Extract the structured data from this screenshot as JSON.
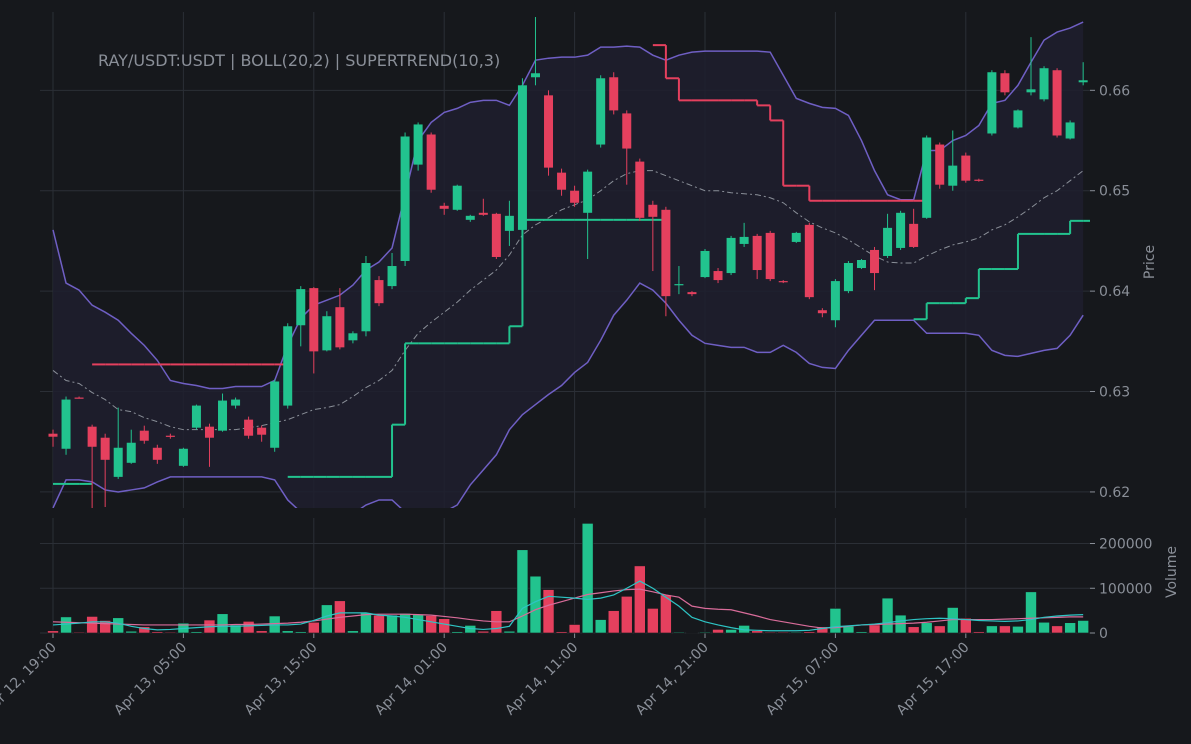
{
  "chart_data": [
    {
      "type": "candlestick",
      "title": "RAY/USDT:USDT | BOLL(20,2) | SUPERTREND(10,3)",
      "ylabel": "Price",
      "categories": [
        "Apr 12, 19:00",
        null,
        null,
        null,
        null,
        null,
        null,
        null,
        null,
        null,
        "Apr 13, 05:00",
        null,
        null,
        null,
        null,
        null,
        null,
        null,
        null,
        null,
        "Apr 13, 15:00",
        null,
        null,
        null,
        null,
        null,
        null,
        null,
        null,
        null,
        "Apr 14, 01:00",
        null,
        null,
        null,
        null,
        null,
        null,
        null,
        null,
        null,
        "Apr 14, 11:00",
        null,
        null,
        null,
        null,
        null,
        null,
        null,
        null,
        null,
        "Apr 14, 21:00",
        null,
        null,
        null,
        null,
        null,
        null,
        null,
        null,
        null,
        "Apr 15, 07:00",
        null,
        null,
        null,
        null,
        null,
        null,
        null,
        null,
        null,
        "Apr 15, 17:00",
        null,
        null,
        null,
        null,
        null,
        null,
        null,
        null,
        null
      ],
      "open": [
        0.6258,
        0.6243,
        0.6294,
        0.6265,
        0.6254,
        0.6215,
        0.6229,
        0.6261,
        0.6244,
        0.6256,
        0.6226,
        0.6264,
        0.6265,
        0.6261,
        0.6286,
        0.6272,
        0.6264,
        0.6244,
        0.6286,
        0.6366,
        0.6403,
        0.6341,
        0.6384,
        0.6351,
        0.636,
        0.6411,
        0.6405,
        0.643,
        0.6526,
        0.6556,
        0.6485,
        0.6481,
        0.6471,
        0.6478,
        0.6477,
        0.646,
        0.6461,
        0.6613,
        0.6595,
        0.6518,
        0.65,
        0.6478,
        0.6546,
        0.6613,
        0.6577,
        0.6529,
        0.6486,
        0.6481,
        0.6406,
        0.6399,
        0.6414,
        0.642,
        0.6418,
        0.6447,
        0.6455,
        0.6458,
        0.641,
        0.6449,
        0.6466,
        0.6381,
        0.6371,
        0.64,
        0.6423,
        0.6441,
        0.6435,
        0.6443,
        0.6467,
        0.6473,
        0.6546,
        0.6505,
        0.6535,
        0.6511,
        0.6557,
        0.6617,
        0.6563,
        0.6598,
        0.6591,
        0.662,
        0.6552,
        0.6608
      ],
      "high": [
        0.6262,
        0.6295,
        0.6295,
        0.6267,
        0.6258,
        0.6284,
        0.6262,
        0.6266,
        0.6247,
        0.6258,
        0.6244,
        0.6287,
        0.6268,
        0.6298,
        0.6294,
        0.6275,
        0.6266,
        0.6312,
        0.6368,
        0.6405,
        0.6404,
        0.638,
        0.6403,
        0.636,
        0.6435,
        0.6415,
        0.6438,
        0.6558,
        0.6568,
        0.6558,
        0.6488,
        0.6506,
        0.6476,
        0.6492,
        0.6478,
        0.649,
        0.6612,
        0.6673,
        0.66,
        0.6522,
        0.6505,
        0.6521,
        0.6615,
        0.6618,
        0.658,
        0.6532,
        0.649,
        0.6484,
        0.6425,
        0.64,
        0.6442,
        0.6423,
        0.6455,
        0.6468,
        0.6457,
        0.646,
        0.6411,
        0.6459,
        0.6468,
        0.6383,
        0.6412,
        0.643,
        0.6432,
        0.6444,
        0.6477,
        0.648,
        0.6482,
        0.6555,
        0.6548,
        0.656,
        0.6538,
        0.6512,
        0.662,
        0.662,
        0.6581,
        0.6653,
        0.6624,
        0.6622,
        0.657,
        0.6628
      ],
      "low": [
        0.6245,
        0.6237,
        0.6293,
        0.6182,
        0.6185,
        0.6213,
        0.6228,
        0.6248,
        0.6228,
        0.6253,
        0.6225,
        0.6262,
        0.6225,
        0.626,
        0.6283,
        0.6253,
        0.625,
        0.624,
        0.6283,
        0.6345,
        0.6318,
        0.634,
        0.6342,
        0.6348,
        0.6355,
        0.6385,
        0.6402,
        0.6425,
        0.652,
        0.6498,
        0.6476,
        0.648,
        0.6469,
        0.6475,
        0.6432,
        0.6445,
        0.646,
        0.6605,
        0.6515,
        0.6495,
        0.6484,
        0.6432,
        0.6543,
        0.6576,
        0.6506,
        0.647,
        0.642,
        0.6375,
        0.6397,
        0.6395,
        0.6413,
        0.6408,
        0.6416,
        0.6444,
        0.6412,
        0.641,
        0.6408,
        0.6448,
        0.6392,
        0.6374,
        0.6364,
        0.6398,
        0.6422,
        0.6401,
        0.6433,
        0.6441,
        0.6443,
        0.6472,
        0.6502,
        0.65,
        0.6508,
        0.6509,
        0.6555,
        0.6595,
        0.6562,
        0.6595,
        0.6589,
        0.6553,
        0.6551,
        0.6605
      ],
      "close": [
        0.6255,
        0.6292,
        0.6293,
        0.6245,
        0.6232,
        0.6244,
        0.6249,
        0.6251,
        0.6232,
        0.6255,
        0.6243,
        0.6286,
        0.6254,
        0.6291,
        0.6292,
        0.6256,
        0.6257,
        0.631,
        0.6365,
        0.6402,
        0.634,
        0.6375,
        0.6344,
        0.6358,
        0.6428,
        0.6388,
        0.6425,
        0.6554,
        0.6566,
        0.6501,
        0.6482,
        0.6505,
        0.6475,
        0.6476,
        0.6434,
        0.6475,
        0.6605,
        0.6617,
        0.6523,
        0.6501,
        0.6488,
        0.6519,
        0.6612,
        0.658,
        0.6542,
        0.6473,
        0.6474,
        0.6395,
        0.6407,
        0.6397,
        0.644,
        0.6411,
        0.6453,
        0.6454,
        0.6421,
        0.6412,
        0.6409,
        0.6458,
        0.6394,
        0.6378,
        0.641,
        0.6428,
        0.6431,
        0.6418,
        0.6463,
        0.6478,
        0.6444,
        0.6553,
        0.6506,
        0.6525,
        0.651,
        0.651,
        0.6618,
        0.6598,
        0.658,
        0.6601,
        0.6622,
        0.6555,
        0.6568,
        0.661
      ],
      "up_color": "#22c38e",
      "down_color": "#e5405e",
      "series": [
        {
          "kind": "line",
          "color": "#6f5fc4",
          "values": [
            0.6461,
            0.6408,
            0.6401,
            0.6386,
            0.6379,
            0.6371,
            0.6358,
            0.6346,
            0.6331,
            0.6311,
            0.6308,
            0.6306,
            0.6303,
            0.6303,
            0.6305,
            0.6305,
            0.6305,
            0.6311,
            0.6346,
            0.6373,
            0.6386,
            0.6391,
            0.6396,
            0.6406,
            0.6421,
            0.6429,
            0.6443,
            0.6496,
            0.655,
            0.6568,
            0.6578,
            0.6582,
            0.6588,
            0.659,
            0.659,
            0.6585,
            0.6605,
            0.663,
            0.6632,
            0.6633,
            0.6633,
            0.6635,
            0.6643,
            0.6643,
            0.6644,
            0.6643,
            0.6635,
            0.663,
            0.6635,
            0.6638,
            0.6639,
            0.6639,
            0.6639,
            0.6639,
            0.6639,
            0.6638,
            0.6615,
            0.6592,
            0.6587,
            0.6583,
            0.6582,
            0.6575,
            0.655,
            0.652,
            0.6496,
            0.6491,
            0.6491,
            0.654,
            0.654,
            0.655,
            0.6555,
            0.6565,
            0.6587,
            0.659,
            0.6605,
            0.6628,
            0.665,
            0.6658,
            0.6662,
            0.6668
          ]
        },
        {
          "kind": "dashed",
          "color": "#8a8f98",
          "values": [
            0.6321,
            0.6311,
            0.6308,
            0.6299,
            0.6292,
            0.6282,
            0.628,
            0.6274,
            0.627,
            0.6265,
            0.6262,
            0.6262,
            0.6262,
            0.6262,
            0.6262,
            0.6264,
            0.6266,
            0.6269,
            0.6272,
            0.6277,
            0.6282,
            0.6284,
            0.6287,
            0.6295,
            0.6304,
            0.6311,
            0.6321,
            0.6341,
            0.6358,
            0.6369,
            0.6379,
            0.6389,
            0.6401,
            0.6411,
            0.6421,
            0.6436,
            0.6456,
            0.6466,
            0.6473,
            0.6481,
            0.6486,
            0.6491,
            0.65,
            0.651,
            0.6517,
            0.652,
            0.652,
            0.6515,
            0.651,
            0.6505,
            0.65,
            0.65,
            0.6498,
            0.6497,
            0.6496,
            0.6493,
            0.6488,
            0.6478,
            0.6469,
            0.6463,
            0.6458,
            0.6451,
            0.6443,
            0.6435,
            0.6429,
            0.6428,
            0.6428,
            0.6435,
            0.6441,
            0.6446,
            0.6449,
            0.6453,
            0.6461,
            0.6466,
            0.6474,
            0.6483,
            0.6493,
            0.65,
            0.651,
            0.652
          ]
        },
        {
          "kind": "line",
          "color": "#6f5fc4",
          "values": [
            0.6184,
            0.6212,
            0.6212,
            0.621,
            0.6202,
            0.62,
            0.6202,
            0.6204,
            0.621,
            0.6215,
            0.6215,
            0.6215,
            0.6215,
            0.6215,
            0.6215,
            0.6215,
            0.6215,
            0.6212,
            0.6192,
            0.618,
            0.6178,
            0.6178,
            0.6175,
            0.6178,
            0.6187,
            0.6192,
            0.6192,
            0.618,
            0.6175,
            0.6175,
            0.618,
            0.6187,
            0.6207,
            0.6222,
            0.6237,
            0.6262,
            0.6277,
            0.6287,
            0.6297,
            0.6306,
            0.6319,
            0.6329,
            0.6351,
            0.6376,
            0.6391,
            0.6408,
            0.6401,
            0.6388,
            0.6371,
            0.6356,
            0.6348,
            0.6346,
            0.6344,
            0.6344,
            0.6339,
            0.6339,
            0.6346,
            0.6339,
            0.6328,
            0.6324,
            0.6323,
            0.6341,
            0.6356,
            0.6371,
            0.6371,
            0.6371,
            0.6371,
            0.6358,
            0.6358,
            0.6358,
            0.6358,
            0.6356,
            0.6341,
            0.6336,
            0.6335,
            0.6338,
            0.6341,
            0.6343,
            0.6356,
            0.6376
          ]
        },
        {
          "kind": "step",
          "color": "#22c38e",
          "values": [
            0.6208,
            0.6208,
            0.6208,
            null,
            null,
            null,
            null,
            null,
            null,
            null,
            null,
            null,
            null,
            null,
            null,
            null,
            null,
            null,
            0.6215,
            0.6215,
            0.6215,
            0.6215,
            0.6215,
            0.6215,
            0.6215,
            0.6215,
            0.6267,
            0.6348,
            0.6348,
            0.6348,
            0.6348,
            0.6348,
            0.6348,
            0.6348,
            0.6348,
            0.6365,
            0.6471,
            0.6471,
            0.6471,
            0.6471,
            0.6471,
            0.6471,
            0.6471,
            0.6471,
            0.6471,
            0.6471,
            0.6471,
            null,
            null,
            null,
            null,
            null,
            null,
            null,
            null,
            null,
            null,
            null,
            null,
            null,
            null,
            null,
            null,
            null,
            null,
            null,
            0.6372,
            0.6388,
            0.6388,
            0.6388,
            0.6393,
            0.6422,
            0.6422,
            0.6422,
            0.6457,
            0.6457,
            0.6457,
            0.6457,
            0.647,
            0.647
          ]
        },
        {
          "kind": "step",
          "color": "#e5405e",
          "values": [
            null,
            null,
            null,
            0.6327,
            0.6327,
            0.6327,
            0.6327,
            0.6327,
            0.6327,
            0.6327,
            0.6327,
            0.6327,
            0.6327,
            0.6327,
            0.6327,
            0.6327,
            0.6327,
            0.6327,
            null,
            null,
            null,
            null,
            null,
            null,
            null,
            null,
            null,
            null,
            null,
            null,
            null,
            null,
            null,
            null,
            null,
            null,
            null,
            null,
            null,
            null,
            null,
            null,
            null,
            null,
            null,
            null,
            0.6645,
            0.6612,
            0.659,
            0.659,
            0.659,
            0.659,
            0.659,
            0.659,
            0.6585,
            0.657,
            0.6505,
            0.6505,
            0.649,
            0.649,
            0.649,
            0.649,
            0.649,
            0.649,
            0.649,
            0.649,
            0.649,
            null,
            null,
            null,
            null,
            null,
            null,
            null,
            null,
            null,
            null,
            null,
            null,
            null
          ]
        }
      ],
      "band_fill": "#1f1f2e",
      "ylim": [
        0.6184,
        0.6678
      ],
      "yticks": [
        0.62,
        0.63,
        0.64,
        0.65,
        0.66
      ],
      "grid": true
    },
    {
      "type": "bar",
      "ylabel": "Volume",
      "values": [
        5000,
        36000,
        2000,
        37000,
        28000,
        34000,
        4000,
        14000,
        3000,
        2000,
        22000,
        3000,
        29000,
        43000,
        18000,
        26000,
        5000,
        38000,
        5000,
        3000,
        24000,
        63000,
        72000,
        5000,
        45000,
        40000,
        40000,
        44000,
        42000,
        39000,
        32000,
        3000,
        17000,
        4000,
        50000,
        4000,
        186000,
        127000,
        97000,
        3000,
        19000,
        245000,
        30000,
        50000,
        82000,
        150000,
        55000,
        85000,
        2000,
        1000,
        2000,
        8000,
        8000,
        17000,
        5000,
        2000,
        2000,
        2000,
        3000,
        14000,
        55000,
        15000,
        3000,
        18000,
        78000,
        40000,
        14000,
        23000,
        16000,
        57000,
        33000,
        3000,
        16000,
        16000,
        15000,
        92000,
        24000,
        16000,
        23000,
        28000
      ],
      "series": [
        {
          "color": "#d96c9a",
          "values": [
            25000,
            24000,
            23000,
            22000,
            21000,
            20000,
            19000,
            18000,
            18000,
            18000,
            18000,
            18000,
            18000,
            18000,
            19000,
            19000,
            20000,
            21000,
            22000,
            24000,
            27000,
            31000,
            35000,
            38000,
            41000,
            42000,
            42000,
            42000,
            41000,
            40000,
            37000,
            34000,
            30000,
            27000,
            25000,
            25000,
            38000,
            52000,
            62000,
            70000,
            78000,
            86000,
            90000,
            94000,
            97000,
            98000,
            92000,
            85000,
            80000,
            60000,
            55000,
            53000,
            52000,
            45000,
            38000,
            30000,
            25000,
            20000,
            15000,
            11000,
            12000,
            15000,
            18000,
            19000,
            20000,
            21000,
            22000,
            24000,
            27000,
            30000,
            30000,
            30000,
            30000,
            31000,
            32000,
            33000,
            34000,
            35000,
            36000,
            36000
          ]
        },
        {
          "color": "#2ec4c4",
          "values": [
            18000,
            20000,
            22000,
            25000,
            25000,
            22000,
            15000,
            10000,
            7000,
            8000,
            10000,
            12000,
            14000,
            15000,
            15000,
            16000,
            17000,
            18000,
            18000,
            20000,
            28000,
            38000,
            45000,
            45000,
            45000,
            40000,
            38000,
            35000,
            30000,
            25000,
            20000,
            15000,
            10000,
            8000,
            10000,
            15000,
            55000,
            70000,
            82000,
            80000,
            78000,
            75000,
            78000,
            85000,
            100000,
            116000,
            100000,
            80000,
            60000,
            35000,
            25000,
            18000,
            12000,
            7000,
            6000,
            5000,
            5000,
            5000,
            6000,
            10000,
            14000,
            16000,
            18000,
            20000,
            23000,
            27000,
            30000,
            32000,
            33000,
            32000,
            30000,
            28000,
            27000,
            26000,
            27000,
            30000,
            35000,
            38000,
            40000,
            41000
          ]
        }
      ],
      "ylim": [
        0,
        257000
      ],
      "yticks": [
        0,
        100000,
        200000
      ],
      "grid": true
    }
  ]
}
